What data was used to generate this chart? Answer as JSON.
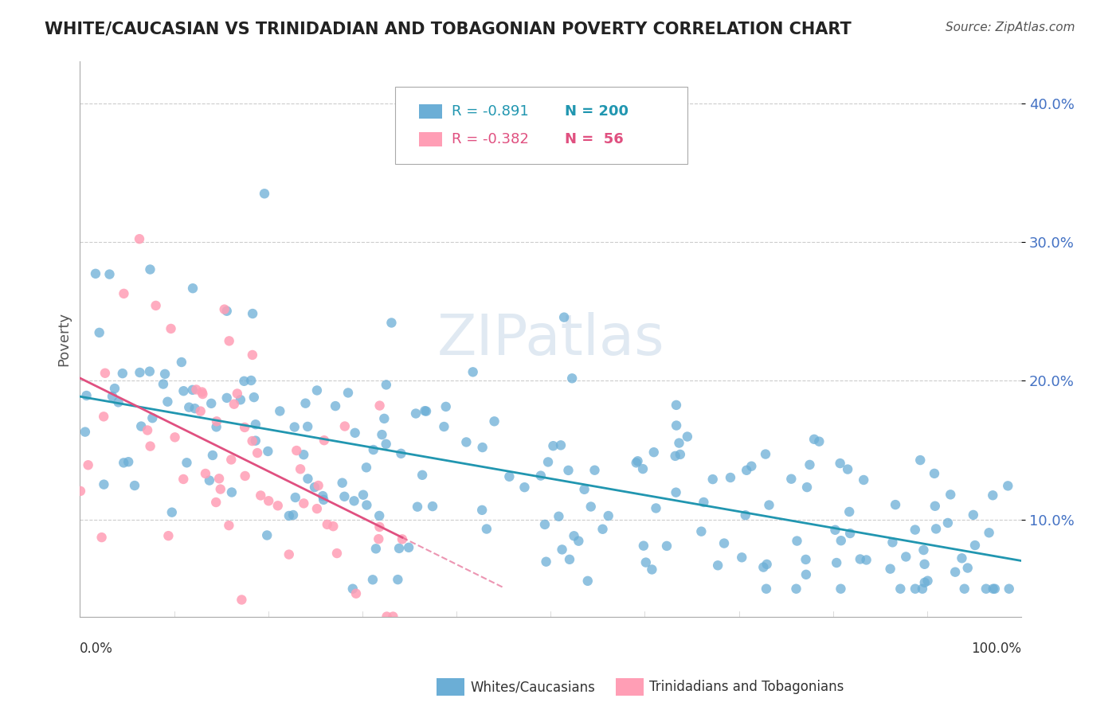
{
  "title": "WHITE/CAUCASIAN VS TRINIDADIAN AND TOBAGONIAN POVERTY CORRELATION CHART",
  "source": "Source: ZipAtlas.com",
  "ylabel": "Poverty",
  "watermark": "ZIPatlas",
  "background_color": "#ffffff",
  "blue_R": -0.891,
  "blue_N": 200,
  "pink_R": -0.382,
  "pink_N": 56,
  "blue_color": "#6baed6",
  "blue_line_color": "#2196b0",
  "pink_color": "#ff9eb5",
  "pink_line_color": "#e05080",
  "legend_blue_label": "Whites/Caucasians",
  "legend_pink_label": "Trinidadians and Tobagonians",
  "y_ticks": [
    0.1,
    0.2,
    0.3,
    0.4
  ],
  "y_tick_labels": [
    "10.0%",
    "20.0%",
    "30.0%",
    "40.0%"
  ],
  "xlim": [
    0.0,
    1.0
  ],
  "ylim": [
    0.03,
    0.43
  ],
  "title_color": "#222222",
  "tick_color": "#4472c4",
  "grid_color": "#cccccc",
  "seed_blue": 42,
  "seed_pink": 7
}
